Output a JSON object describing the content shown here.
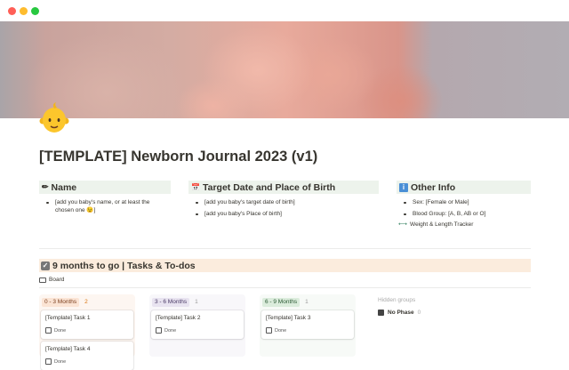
{
  "window": {
    "controls": [
      "close",
      "minimize",
      "maximize"
    ],
    "colors": [
      "#ff5f57",
      "#febc2e",
      "#28c840"
    ]
  },
  "page": {
    "icon": "baby-emoji",
    "title": "[TEMPLATE] Newborn Journal 2023 (v1)"
  },
  "callouts": [
    {
      "icon": "pencil-icon",
      "title": "Name",
      "items": [
        "[add you baby's name, or at least the chosen one 😉]"
      ]
    },
    {
      "icon": "calendar-icon",
      "title": "Target Date and Place of Birth",
      "items": [
        "[add you baby's target date of birth]",
        "[add you baby's Place of birth]"
      ]
    },
    {
      "icon": "info-icon",
      "title": "Other Info",
      "items": [
        "Sex: [Female or Male]",
        "Blood Group: [A, B, AB or O]"
      ],
      "link": {
        "icon": "dumbbell-icon",
        "label": "Weight & Length Tracker"
      }
    }
  ],
  "tasks": {
    "icon": "checkbox-icon",
    "title": "9 months to go | Tasks & To-dos",
    "view_tab": "Board",
    "groups": [
      {
        "label": "0 - 3 Months",
        "count": "2",
        "color": "#fbe4d4",
        "cards": [
          {
            "title": "[Template] Task 1",
            "prop": "Done"
          },
          {
            "title": "[Template] Task 4",
            "prop": "Done"
          }
        ]
      },
      {
        "label": "3 - 6 Months",
        "count": "1",
        "color": "#e8e3f0",
        "cards": [
          {
            "title": "[Template] Task 2",
            "prop": "Done"
          }
        ]
      },
      {
        "label": "6 - 9 Months",
        "count": "1",
        "color": "#dbecdc",
        "cards": [
          {
            "title": "[Template] Task 3",
            "prop": "Done"
          }
        ]
      }
    ],
    "hidden_label": "Hidden groups",
    "hidden": [
      {
        "label": "No Phase",
        "count": "0"
      }
    ]
  }
}
